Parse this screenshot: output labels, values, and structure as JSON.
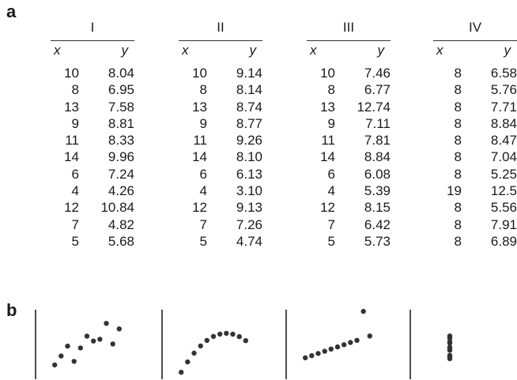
{
  "panel_a_label": "a",
  "panel_b_label": "b",
  "column_x": "x",
  "column_y": "y",
  "chart_data": {
    "type": "table",
    "datasets": [
      {
        "name": "I",
        "x": [
          "10",
          "8",
          "13",
          "9",
          "11",
          "14",
          "6",
          "4",
          "12",
          "7",
          "5"
        ],
        "y": [
          "8.04",
          "6.95",
          "7.58",
          "8.81",
          "8.33",
          "9.96",
          "7.24",
          "4.26",
          "10.84",
          "4.82",
          "5.68"
        ]
      },
      {
        "name": "II",
        "x": [
          "10",
          "8",
          "13",
          "9",
          "11",
          "14",
          "6",
          "4",
          "12",
          "7",
          "5"
        ],
        "y": [
          "9.14",
          "8.14",
          "8.74",
          "8.77",
          "9.26",
          "8.10",
          "6.13",
          "3.10",
          "9.13",
          "7.26",
          "4.74"
        ]
      },
      {
        "name": "III",
        "x": [
          "10",
          "8",
          "13",
          "9",
          "11",
          "14",
          "6",
          "4",
          "12",
          "7",
          "5"
        ],
        "y": [
          "7.46",
          "6.77",
          "12.74",
          "7.11",
          "7.81",
          "8.84",
          "6.08",
          "5.39",
          "8.15",
          "6.42",
          "5.73"
        ]
      },
      {
        "name": "IV",
        "x": [
          "8",
          "8",
          "8",
          "8",
          "8",
          "8",
          "8",
          "19",
          "8",
          "8",
          "8"
        ],
        "y": [
          "6.58",
          "5.76",
          "7.71",
          "8.84",
          "8.47",
          "7.04",
          "5.25",
          "12.5",
          "5.56",
          "7.91",
          "6.89"
        ]
      }
    ],
    "scatter": {
      "type": "scatter",
      "xlim": [
        3,
        15
      ],
      "ylim": [
        2.5,
        13.5
      ],
      "iv_xlim": [
        7.5,
        8.5
      ]
    }
  }
}
